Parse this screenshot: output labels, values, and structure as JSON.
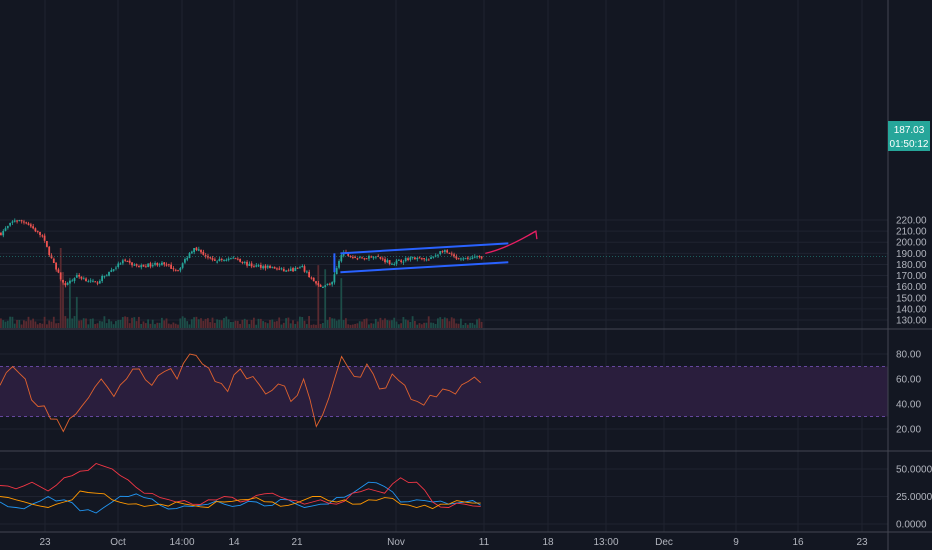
{
  "colors": {
    "background": "#131722",
    "grid": "#1f2330",
    "separator": "#434651",
    "axis_text": "#b2b5be",
    "candle_up": "#26a69a",
    "candle_down": "#ef5350",
    "volume_up": "#1d4d48",
    "volume_down": "#5a2a30",
    "channel": "#2962ff",
    "projection_arrow": "#e91e63",
    "rsi_line": "#e0622e",
    "rsi_band": "#2a1e3d",
    "rsi_bounds": "#7e57c2",
    "ind_blue": "#2196f3",
    "ind_red": "#f23645",
    "ind_orange": "#ff9800",
    "price_badge": "#26a69a"
  },
  "chart_data": [
    {
      "type": "candlestick",
      "title": "",
      "y_axis_ticks": [
        "220.00",
        "210.00",
        "200.00",
        "190.00",
        "180.00",
        "170.00",
        "160.00",
        "150.00",
        "140.00",
        "130.00"
      ],
      "ylim": [
        127,
        225
      ],
      "x_axis_ticks": [
        "23",
        "Oct",
        "14:00",
        "14",
        "21",
        "Nov",
        "11",
        "18",
        "13:00",
        "Dec",
        "9",
        "16",
        "23"
      ],
      "last_price": "187.03",
      "countdown": "01:50:12",
      "price_path": [
        {
          "bar": 0,
          "price": 208
        },
        {
          "bar": 6,
          "price": 220
        },
        {
          "bar": 11,
          "price": 218
        },
        {
          "bar": 18,
          "price": 205
        },
        {
          "bar": 24,
          "price": 175
        },
        {
          "bar": 28,
          "price": 160
        },
        {
          "bar": 33,
          "price": 170
        },
        {
          "bar": 41,
          "price": 163
        },
        {
          "bar": 53,
          "price": 183
        },
        {
          "bar": 60,
          "price": 178
        },
        {
          "bar": 69,
          "price": 181
        },
        {
          "bar": 77,
          "price": 175
        },
        {
          "bar": 84,
          "price": 196
        },
        {
          "bar": 92,
          "price": 183
        },
        {
          "bar": 102,
          "price": 186
        },
        {
          "bar": 108,
          "price": 179
        },
        {
          "bar": 116,
          "price": 178
        },
        {
          "bar": 124,
          "price": 174
        },
        {
          "bar": 131,
          "price": 177
        },
        {
          "bar": 138,
          "price": 160
        },
        {
          "bar": 144,
          "price": 163
        },
        {
          "bar": 148,
          "price": 190
        },
        {
          "bar": 156,
          "price": 185
        },
        {
          "bar": 162,
          "price": 188
        },
        {
          "bar": 170,
          "price": 181
        },
        {
          "bar": 178,
          "price": 186
        },
        {
          "bar": 186,
          "price": 184
        },
        {
          "bar": 192,
          "price": 193
        },
        {
          "bar": 199,
          "price": 184
        },
        {
          "bar": 206,
          "price": 186
        },
        {
          "bar": 209,
          "price": 187
        }
      ],
      "channel": {
        "upper": [
          {
            "bar": 148,
            "price": 190
          },
          {
            "bar": 221,
            "price": 199
          }
        ],
        "lower": [
          {
            "bar": 148,
            "price": 173
          },
          {
            "bar": 221,
            "price": 182
          }
        ]
      },
      "projection": [
        {
          "bar": 211,
          "price": 190
        },
        {
          "bar": 220,
          "price": 194
        },
        {
          "bar": 233,
          "price": 210
        }
      ]
    },
    {
      "type": "line",
      "title": "",
      "y_axis_ticks": [
        "80.00",
        "60.00",
        "40.00",
        "20.00"
      ],
      "ylim": [
        13,
        90
      ],
      "band": [
        30,
        70
      ],
      "series": [
        {
          "values": [
            55,
            70,
            60,
            38,
            28,
            18,
            32,
            45,
            60,
            46,
            60,
            68,
            55,
            66,
            60,
            80,
            72,
            58,
            50,
            68,
            62,
            48,
            56,
            42,
            60,
            22,
            45,
            78,
            62,
            72,
            52,
            64,
            55,
            42,
            47,
            52,
            48,
            58,
            57
          ]
        }
      ]
    },
    {
      "type": "line",
      "title": "",
      "y_axis_ticks": [
        "50.0000",
        "25.0000",
        "0.0000"
      ],
      "ylim": [
        -3,
        58
      ],
      "series": [
        {
          "values": [
            20,
            15,
            18,
            25,
            22,
            12,
            10,
            20,
            25,
            24,
            17,
            14,
            16,
            18,
            18,
            17,
            20,
            17,
            22,
            15,
            18,
            24,
            28,
            38,
            34,
            20,
            22,
            20,
            18,
            20,
            17
          ]
        },
        {
          "values": [
            35,
            32,
            38,
            30,
            42,
            48,
            55,
            50,
            40,
            28,
            24,
            20,
            18,
            22,
            25,
            20,
            26,
            28,
            22,
            18,
            22,
            18,
            28,
            32,
            28,
            42,
            38,
            20,
            15,
            18,
            16
          ]
        },
        {
          "values": [
            25,
            22,
            18,
            15,
            20,
            30,
            28,
            22,
            18,
            16,
            18,
            20,
            17,
            15,
            20,
            22,
            24,
            20,
            17,
            22,
            25,
            20,
            18,
            22,
            24,
            18,
            15,
            14,
            18,
            20,
            19
          ]
        }
      ]
    }
  ]
}
